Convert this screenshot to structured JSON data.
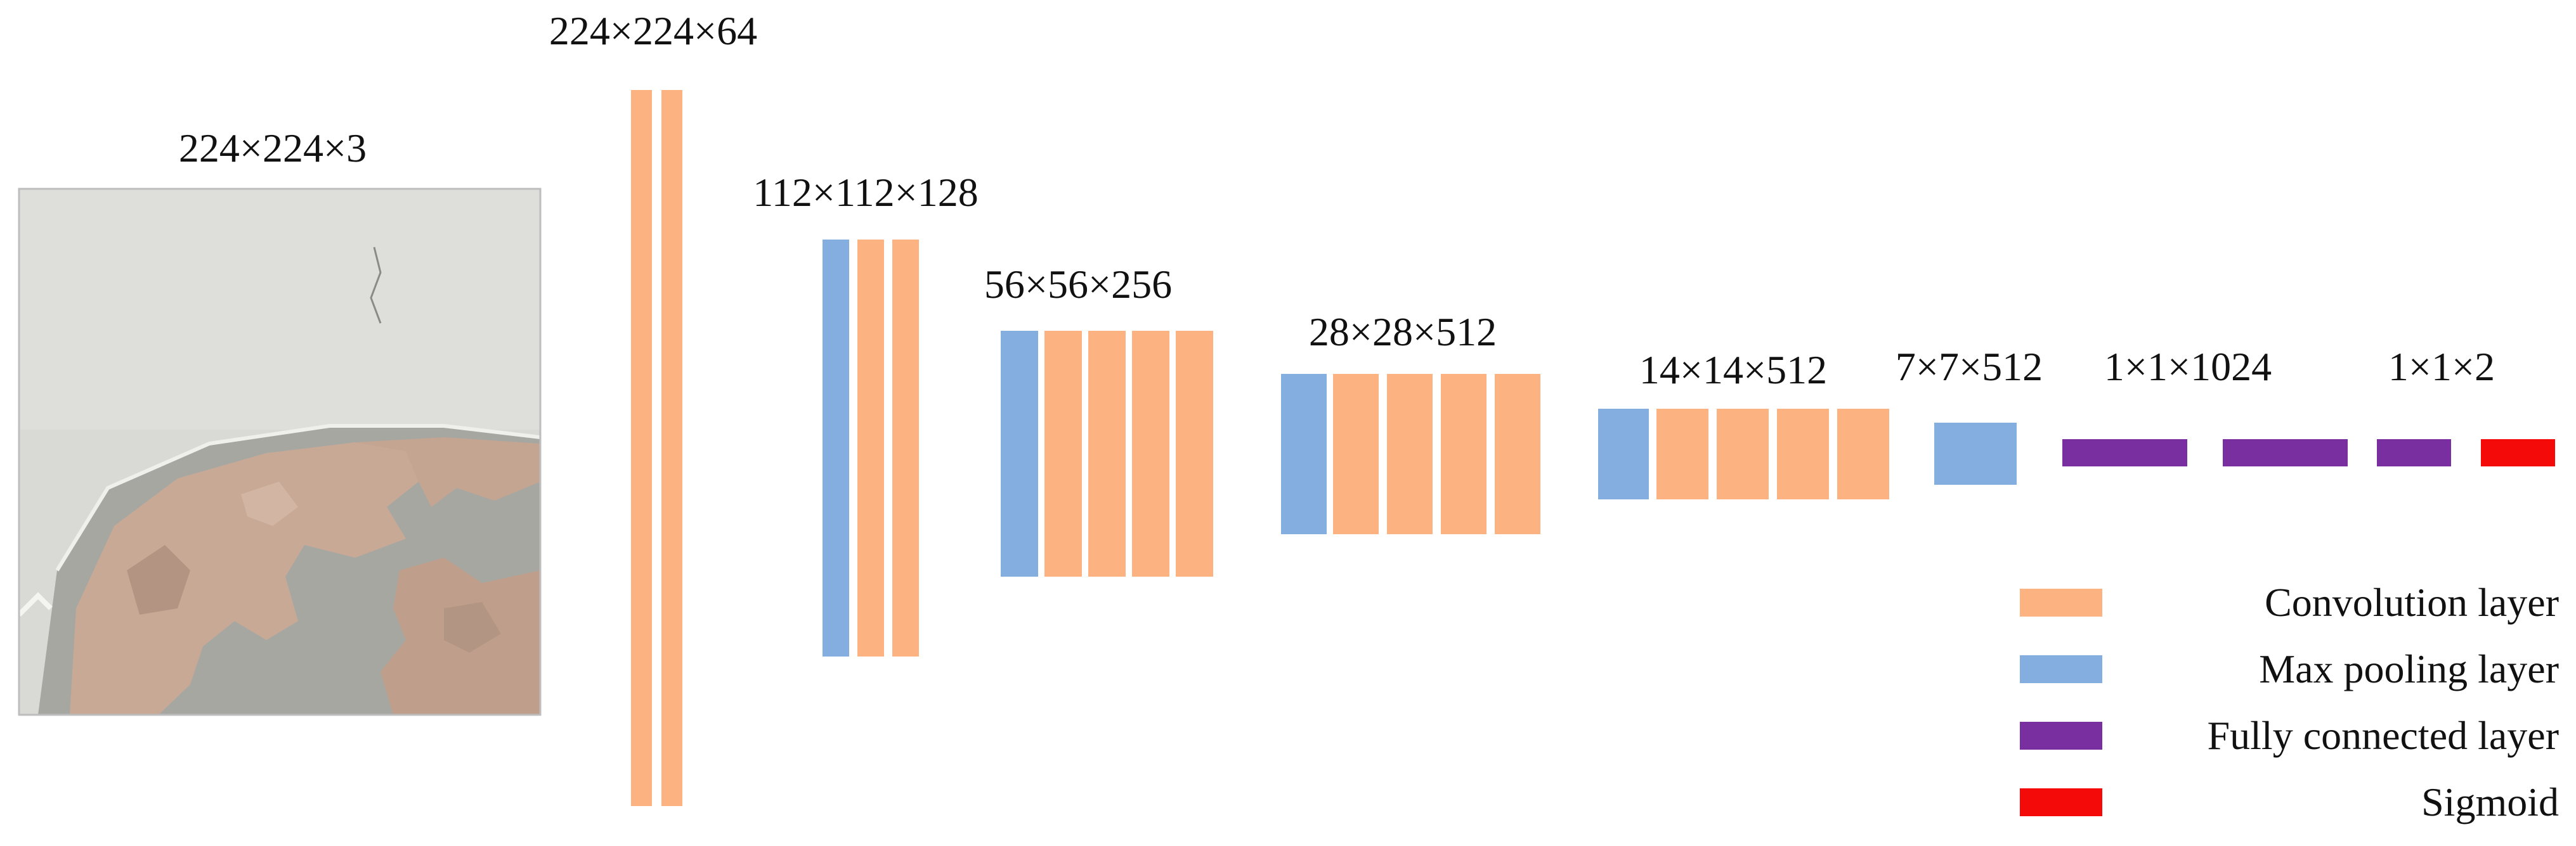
{
  "colors": {
    "convolution": "#FDB282",
    "pooling": "#84ADE0",
    "fully_connected": "#7A2FA0",
    "sigmoid": "#F50A0A",
    "photo_border": "#bdbdbd"
  },
  "input_image": {
    "label": "224×224×3",
    "icon": "cracked-plaster-photo"
  },
  "stages": [
    {
      "label": "224×224×64",
      "layers": [
        "convolution",
        "convolution"
      ]
    },
    {
      "label": "112×112×128",
      "layers": [
        "pooling",
        "convolution",
        "convolution"
      ]
    },
    {
      "label": "56×56×256",
      "layers": [
        "pooling",
        "convolution",
        "convolution",
        "convolution",
        "convolution"
      ]
    },
    {
      "label": "28×28×512",
      "layers": [
        "pooling",
        "convolution",
        "convolution",
        "convolution",
        "convolution"
      ]
    },
    {
      "label": "14×14×512",
      "layers": [
        "pooling",
        "convolution",
        "convolution",
        "convolution",
        "convolution"
      ]
    },
    {
      "label": "7×7×512",
      "layers": [
        "pooling"
      ]
    },
    {
      "label": "1×1×1024",
      "layers": [
        "fully_connected",
        "fully_connected"
      ]
    },
    {
      "label": "1×1×2",
      "layers": [
        "fully_connected",
        "sigmoid"
      ]
    }
  ],
  "legend": [
    {
      "key": "convolution",
      "label": "Convolution layer"
    },
    {
      "key": "pooling",
      "label": "Max pooling layer"
    },
    {
      "key": "fully_connected",
      "label": "Fully connected layer"
    },
    {
      "key": "sigmoid",
      "label": "Sigmoid"
    }
  ]
}
